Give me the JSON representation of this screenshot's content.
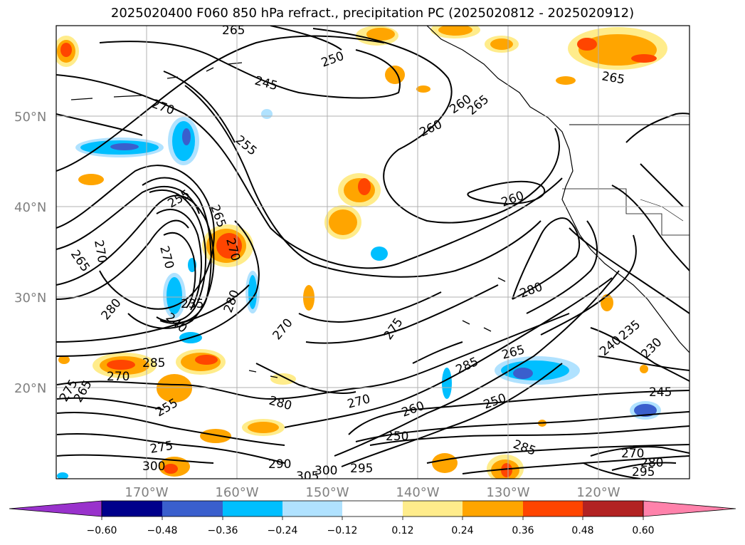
{
  "title": "2025020400 F060 850 hPa refract., precipitation PC (2025020812 - 2025020912)",
  "lat_ticks": [
    "50°N",
    "40°N",
    "30°N",
    "20°N"
  ],
  "lon_ticks": [
    "170°W",
    "160°W",
    "150°W",
    "140°W",
    "130°W",
    "120°W"
  ],
  "colorbar": {
    "labels": [
      "−0.60",
      "−0.48",
      "−0.36",
      "−0.24",
      "−0.12",
      "0.12",
      "0.24",
      "0.36",
      "0.48",
      "0.60"
    ],
    "colors": [
      "#9932cc",
      "#00008b",
      "#3a5fcd",
      "#00bfff",
      "#b0e2ff",
      "#ffffff",
      "#ffec8b",
      "#ffa500",
      "#ff4500",
      "#b22222",
      "#ff82ab"
    ]
  },
  "contour_labels": [
    "265",
    "250",
    "245",
    "270",
    "255",
    "260",
    "265",
    "260",
    "265",
    "255",
    "265",
    "270",
    "270",
    "270",
    "265",
    "260",
    "235",
    "240",
    "280",
    "280",
    "275",
    "270",
    "280",
    "265",
    "285",
    "270",
    "275",
    "265",
    "255",
    "285",
    "280",
    "270",
    "260",
    "250",
    "250",
    "245",
    "240",
    "235",
    "230",
    "275",
    "300",
    "290",
    "305",
    "300",
    "295",
    "285",
    "270",
    "280",
    "295"
  ]
}
